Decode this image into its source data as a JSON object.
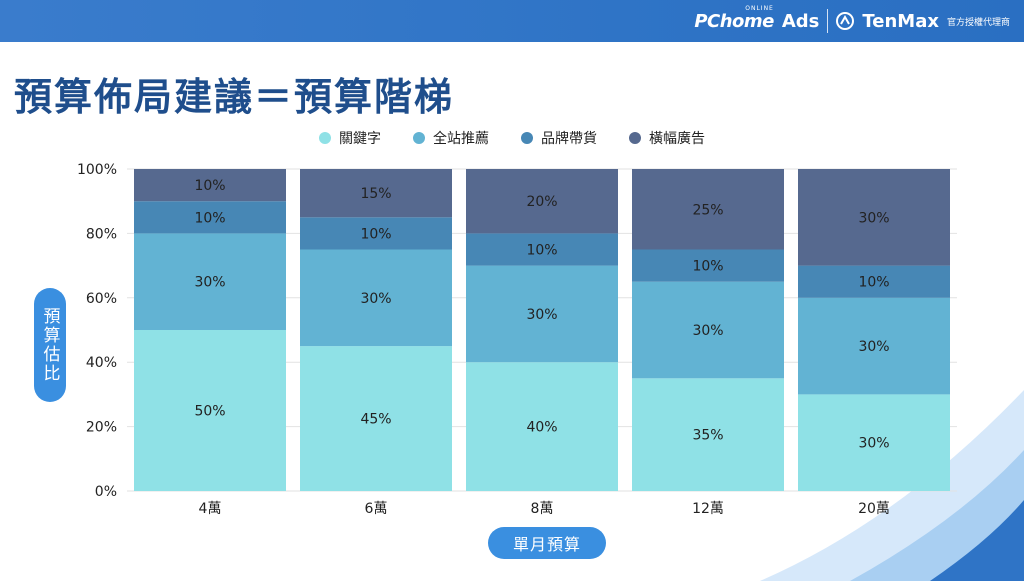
{
  "brand": {
    "pchome": "PChome",
    "online": "ONLINE",
    "ads": "Ads",
    "tenmax": "TenMax",
    "agent": "官方授權代理商"
  },
  "title": "預算佈局建議＝預算階梯",
  "colors": {
    "keyword": "#8fe1e6",
    "site": "#62b3d3",
    "brand": "#4787b5",
    "banner": "#56698f",
    "title": "#1f4e8c",
    "pill": "#3a8fe0"
  },
  "chart_data": {
    "type": "bar",
    "stacked": true,
    "categories": [
      "4萬",
      "6萬",
      "8萬",
      "12萬",
      "20萬"
    ],
    "series": [
      {
        "name": "關鍵字",
        "values": [
          50,
          45,
          40,
          35,
          30
        ],
        "labels": [
          "50%",
          "45%",
          "40%",
          "35%",
          "30%"
        ],
        "color": "#8fe1e6"
      },
      {
        "name": "全站推薦",
        "values": [
          30,
          30,
          30,
          30,
          30
        ],
        "labels": [
          "30%",
          "30%",
          "30%",
          "30%",
          "30%"
        ],
        "color": "#62b3d3"
      },
      {
        "name": "品牌帶貨",
        "values": [
          10,
          10,
          10,
          10,
          10
        ],
        "labels": [
          "10%",
          "10%",
          "10%",
          "10%",
          "10%"
        ],
        "color": "#4787b5"
      },
      {
        "name": "橫幅廣告",
        "values": [
          10,
          15,
          20,
          25,
          30
        ],
        "labels": [
          "10%",
          "15%",
          "20%",
          "25%",
          "30%"
        ],
        "color": "#56698f"
      }
    ],
    "yticks": [
      {
        "value": 0,
        "label": "0%"
      },
      {
        "value": 20,
        "label": "20%"
      },
      {
        "value": 40,
        "label": "40%"
      },
      {
        "value": 60,
        "label": "60%"
      },
      {
        "value": 80,
        "label": "80%"
      },
      {
        "value": 100,
        "label": "100%"
      }
    ],
    "ylim": [
      0,
      100
    ],
    "ylabel": "預算估比",
    "xlabel": "單月預算",
    "grid": true,
    "legend_position": "top"
  }
}
